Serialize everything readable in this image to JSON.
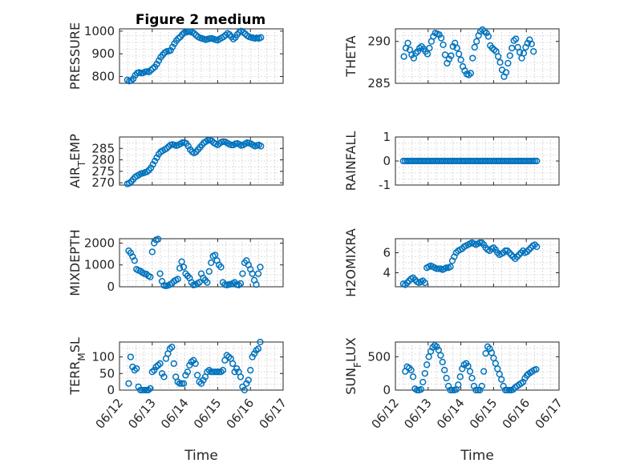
{
  "figure": {
    "title": "Figure 2 medium",
    "marker_color": "#0072BD"
  },
  "chart_data": [
    {
      "type": "scatter",
      "ylabel": "PRESSURE",
      "ylim": [
        770,
        1010
      ],
      "yticks": [
        800,
        900,
        1000
      ],
      "ytick_labels": [
        "800",
        "900",
        "1000"
      ],
      "grid": true,
      "x": [
        0.24,
        0.3,
        0.36,
        0.42,
        0.48,
        0.54,
        0.6,
        0.66,
        0.72,
        0.78,
        0.84,
        0.9,
        0.96,
        1.02,
        1.08,
        1.14,
        1.2,
        1.26,
        1.32,
        1.38,
        1.44,
        1.5,
        1.56,
        1.62,
        1.68,
        1.74,
        1.8,
        1.86,
        1.92,
        1.98,
        2.04,
        2.1,
        2.16,
        2.22,
        2.28,
        2.34,
        2.4,
        2.46,
        2.52,
        2.58,
        2.64,
        2.7,
        2.76,
        2.82,
        2.88,
        2.94,
        3.0,
        3.06,
        3.12,
        3.18,
        3.24,
        3.3,
        3.36,
        3.42,
        3.48,
        3.54,
        3.6,
        3.66,
        3.72,
        3.78,
        3.84,
        3.9,
        3.96,
        4.02,
        4.08,
        4.14,
        4.2,
        4.26,
        4.32
      ],
      "y": [
        785,
        780,
        782,
        790,
        805,
        815,
        818,
        815,
        816,
        820,
        822,
        820,
        828,
        835,
        842,
        855,
        870,
        885,
        895,
        905,
        910,
        912,
        915,
        930,
        945,
        958,
        968,
        975,
        985,
        993,
        995,
        998,
        997,
        995,
        990,
        982,
        975,
        970,
        968,
        965,
        962,
        965,
        967,
        968,
        965,
        962,
        960,
        965,
        970,
        975,
        982,
        990,
        985,
        975,
        965,
        972,
        985,
        995,
        1000,
        995,
        988,
        980,
        975,
        972,
        970,
        968,
        970,
        968,
        972
      ]
    },
    {
      "type": "scatter",
      "ylabel": "THETA",
      "ylim": [
        285,
        291.5
      ],
      "yticks": [
        285,
        290
      ],
      "ytick_labels": [
        "285",
        "290"
      ],
      "grid": true,
      "x": [
        0.26,
        0.32,
        0.38,
        0.44,
        0.5,
        0.56,
        0.62,
        0.68,
        0.74,
        0.8,
        0.86,
        0.92,
        0.98,
        1.04,
        1.1,
        1.16,
        1.22,
        1.28,
        1.34,
        1.4,
        1.46,
        1.52,
        1.58,
        1.64,
        1.7,
        1.76,
        1.82,
        1.88,
        1.94,
        2.0,
        2.06,
        2.12,
        2.18,
        2.24,
        2.3,
        2.36,
        2.42,
        2.48,
        2.54,
        2.6,
        2.66,
        2.72,
        2.78,
        2.84,
        2.9,
        2.96,
        3.02,
        3.08,
        3.14,
        3.2,
        3.26,
        3.32,
        3.38,
        3.44,
        3.5,
        3.56,
        3.62,
        3.68,
        3.74,
        3.8,
        3.86,
        3.92,
        3.98,
        4.04,
        4.1,
        4.16,
        4.22
      ],
      "y": [
        288.2,
        289.2,
        289.8,
        289.0,
        288.4,
        288.0,
        288.6,
        288.8,
        289.2,
        289.4,
        289.1,
        288.8,
        288.5,
        289.2,
        290.0,
        290.6,
        291.0,
        290.9,
        290.8,
        290.4,
        289.6,
        288.4,
        287.4,
        287.9,
        288.3,
        289.4,
        289.8,
        289.2,
        288.5,
        287.8,
        287.0,
        286.5,
        286.1,
        286.0,
        286.2,
        288.0,
        289.3,
        290.0,
        290.7,
        291.2,
        291.4,
        291.2,
        291.0,
        290.6,
        289.5,
        289.2,
        289.0,
        288.8,
        288.2,
        287.5,
        286.6,
        285.8,
        286.3,
        287.4,
        288.3,
        289.2,
        290.1,
        290.3,
        289.3,
        288.7,
        288.0,
        288.6,
        289.3,
        289.8,
        290.2,
        289.7,
        288.8
      ]
    },
    {
      "type": "scatter",
      "ylabel": "AIR_TEMP",
      "ylabel_main": "AIR",
      "ylabel_sub": "T",
      "ylabel_rest": "EMP",
      "ylim": [
        269,
        290
      ],
      "yticks": [
        270,
        275,
        280,
        285
      ],
      "ytick_labels": [
        "270",
        "275",
        "280",
        "285"
      ],
      "grid": true,
      "x": [
        0.24,
        0.3,
        0.36,
        0.42,
        0.48,
        0.54,
        0.6,
        0.66,
        0.72,
        0.78,
        0.84,
        0.9,
        0.96,
        1.02,
        1.08,
        1.14,
        1.2,
        1.26,
        1.32,
        1.38,
        1.44,
        1.5,
        1.56,
        1.62,
        1.68,
        1.74,
        1.8,
        1.86,
        1.92,
        1.98,
        2.04,
        2.1,
        2.16,
        2.22,
        2.28,
        2.34,
        2.4,
        2.46,
        2.52,
        2.58,
        2.64,
        2.7,
        2.76,
        2.82,
        2.88,
        2.94,
        3.0,
        3.06,
        3.12,
        3.18,
        3.24,
        3.3,
        3.36,
        3.42,
        3.48,
        3.54,
        3.6,
        3.66,
        3.72,
        3.78,
        3.84,
        3.9,
        3.96,
        4.02,
        4.08,
        4.14,
        4.2,
        4.26,
        4.32
      ],
      "y": [
        269.5,
        269.8,
        270.5,
        271.5,
        272.5,
        273.0,
        273.5,
        274.0,
        274.2,
        274.5,
        274.8,
        275.5,
        276.5,
        278.0,
        279.5,
        281.0,
        282.5,
        283.5,
        284.0,
        284.5,
        285.0,
        285.8,
        286.5,
        286.7,
        286.5,
        286.2,
        286.5,
        287.0,
        287.5,
        287.6,
        287.2,
        286.0,
        284.5,
        283.5,
        283.0,
        283.5,
        284.5,
        285.5,
        286.5,
        287.5,
        288.0,
        288.5,
        288.6,
        288.3,
        287.5,
        287.0,
        286.5,
        287.2,
        287.8,
        288.0,
        287.8,
        287.3,
        286.8,
        286.5,
        286.5,
        287.0,
        287.2,
        286.8,
        286.3,
        286.5,
        287.0,
        287.5,
        287.3,
        287.0,
        286.5,
        286.0,
        286.3,
        286.5,
        286.0
      ]
    },
    {
      "type": "scatter",
      "ylabel": "RAINFALL",
      "ylim": [
        -1,
        1
      ],
      "yticks": [
        -1,
        0,
        1
      ],
      "ytick_labels": [
        "-1",
        "0",
        "1"
      ],
      "grid": true,
      "x": [
        0.24,
        0.3,
        0.36,
        0.42,
        0.48,
        0.54,
        0.6,
        0.66,
        0.72,
        0.78,
        0.84,
        0.9,
        0.96,
        1.02,
        1.08,
        1.14,
        1.2,
        1.26,
        1.32,
        1.38,
        1.44,
        1.5,
        1.56,
        1.62,
        1.68,
        1.74,
        1.8,
        1.86,
        1.92,
        1.98,
        2.04,
        2.1,
        2.16,
        2.22,
        2.28,
        2.34,
        2.4,
        2.46,
        2.52,
        2.58,
        2.64,
        2.7,
        2.76,
        2.82,
        2.88,
        2.94,
        3.0,
        3.06,
        3.12,
        3.18,
        3.24,
        3.3,
        3.36,
        3.42,
        3.48,
        3.54,
        3.6,
        3.66,
        3.72,
        3.78,
        3.84,
        3.9,
        3.96,
        4.02,
        4.08,
        4.14,
        4.2,
        4.26,
        4.32
      ],
      "y": [
        0,
        0,
        0,
        0,
        0,
        0,
        0,
        0,
        0,
        0,
        0,
        0,
        0,
        0,
        0,
        0,
        0,
        0,
        0,
        0,
        0,
        0,
        0,
        0,
        0,
        0,
        0,
        0,
        0,
        0,
        0,
        0,
        0,
        0,
        0,
        0,
        0,
        0,
        0,
        0,
        0,
        0,
        0,
        0,
        0,
        0,
        0,
        0,
        0,
        0,
        0,
        0,
        0,
        0,
        0,
        0,
        0,
        0,
        0,
        0,
        0,
        0,
        0,
        0,
        0,
        0,
        0,
        0,
        0
      ]
    },
    {
      "type": "scatter",
      "ylabel": "MIXDEPTH",
      "ylim": [
        0,
        2200
      ],
      "yticks": [
        0,
        1000,
        2000
      ],
      "ytick_labels": [
        "0",
        "1000",
        "2000"
      ],
      "grid": true,
      "x": [
        0.28,
        0.34,
        0.4,
        0.46,
        0.52,
        0.58,
        0.64,
        0.7,
        0.76,
        0.82,
        0.88,
        0.94,
        1.0,
        1.06,
        1.12,
        1.18,
        1.24,
        1.3,
        1.36,
        1.42,
        1.48,
        1.54,
        1.6,
        1.66,
        1.72,
        1.78,
        1.84,
        1.9,
        1.96,
        2.02,
        2.08,
        2.14,
        2.2,
        2.26,
        2.32,
        2.38,
        2.44,
        2.5,
        2.56,
        2.62,
        2.68,
        2.74,
        2.8,
        2.86,
        2.92,
        2.98,
        3.04,
        3.1,
        3.16,
        3.22,
        3.28,
        3.34,
        3.4,
        3.46,
        3.52,
        3.58,
        3.64,
        3.7,
        3.76,
        3.82,
        3.88,
        3.94,
        4.0,
        4.06,
        4.12,
        4.18,
        4.24,
        4.3
      ],
      "y": [
        1650,
        1550,
        1380,
        1200,
        800,
        750,
        720,
        650,
        600,
        580,
        500,
        450,
        1600,
        2000,
        2150,
        2180,
        600,
        250,
        60,
        40,
        60,
        100,
        150,
        250,
        300,
        350,
        850,
        1150,
        900,
        600,
        500,
        400,
        200,
        80,
        100,
        150,
        200,
        600,
        400,
        300,
        200,
        700,
        1100,
        1400,
        1450,
        1200,
        1000,
        900,
        200,
        100,
        80,
        100,
        120,
        150,
        200,
        100,
        80,
        150,
        600,
        1100,
        1200,
        1000,
        800,
        600,
        300,
        100,
        600,
        900
      ]
    },
    {
      "type": "scatter",
      "ylabel": "H2OMIXRA",
      "ylim": [
        2.6,
        7.4
      ],
      "yticks": [
        4,
        6
      ],
      "ytick_labels": [
        "4",
        "6"
      ],
      "grid": true,
      "x": [
        0.24,
        0.3,
        0.36,
        0.42,
        0.48,
        0.54,
        0.6,
        0.66,
        0.72,
        0.78,
        0.84,
        0.9,
        0.96,
        1.02,
        1.08,
        1.14,
        1.2,
        1.26,
        1.32,
        1.38,
        1.44,
        1.5,
        1.56,
        1.62,
        1.68,
        1.74,
        1.8,
        1.86,
        1.92,
        1.98,
        2.04,
        2.1,
        2.16,
        2.22,
        2.28,
        2.34,
        2.4,
        2.46,
        2.52,
        2.58,
        2.64,
        2.7,
        2.76,
        2.82,
        2.88,
        2.94,
        3.0,
        3.06,
        3.12,
        3.18,
        3.24,
        3.3,
        3.36,
        3.42,
        3.48,
        3.54,
        3.6,
        3.66,
        3.72,
        3.78,
        3.84,
        3.9,
        3.96,
        4.02,
        4.08,
        4.14,
        4.2,
        4.26,
        4.32
      ],
      "y": [
        2.9,
        2.8,
        3.0,
        3.2,
        3.4,
        3.5,
        3.3,
        3.1,
        3.0,
        3.1,
        3.2,
        3.0,
        4.5,
        4.6,
        4.7,
        4.6,
        4.5,
        4.4,
        4.4,
        4.4,
        4.3,
        4.4,
        4.5,
        4.5,
        4.6,
        5.2,
        5.6,
        6.0,
        6.2,
        6.3,
        6.4,
        6.6,
        6.7,
        6.8,
        6.9,
        7.0,
        6.9,
        6.8,
        6.9,
        7.0,
        7.0,
        6.8,
        6.5,
        6.3,
        6.2,
        6.4,
        6.5,
        6.3,
        6.0,
        5.8,
        5.9,
        6.0,
        6.2,
        6.2,
        6.0,
        5.8,
        5.6,
        5.4,
        5.6,
        5.8,
        6.0,
        6.2,
        6.0,
        6.1,
        6.3,
        6.5,
        6.7,
        6.8,
        6.6
      ]
    },
    {
      "type": "scatter",
      "ylabel": "TERR_MSL",
      "ylabel_main": "TERR",
      "ylabel_sub": "M",
      "ylabel_rest": "SL",
      "ylim": [
        0,
        145
      ],
      "yticks": [
        0,
        50,
        100
      ],
      "ytick_labels": [
        "0",
        "50",
        "100"
      ],
      "grid": true,
      "x": [
        0.28,
        0.34,
        0.4,
        0.46,
        0.52,
        0.58,
        0.64,
        0.7,
        0.76,
        0.82,
        0.88,
        0.94,
        1.0,
        1.06,
        1.12,
        1.18,
        1.24,
        1.3,
        1.36,
        1.42,
        1.48,
        1.54,
        1.6,
        1.66,
        1.72,
        1.78,
        1.84,
        1.9,
        1.96,
        2.02,
        2.08,
        2.14,
        2.2,
        2.26,
        2.32,
        2.38,
        2.44,
        2.5,
        2.56,
        2.62,
        2.68,
        2.74,
        2.8,
        2.86,
        2.92,
        2.98,
        3.04,
        3.1,
        3.16,
        3.22,
        3.28,
        3.34,
        3.4,
        3.46,
        3.52,
        3.58,
        3.64,
        3.7,
        3.76,
        3.82,
        3.88,
        3.94,
        4.0,
        4.06,
        4.12,
        4.18,
        4.24,
        4.3
      ],
      "y": [
        20,
        100,
        70,
        60,
        65,
        10,
        0,
        0,
        0,
        0,
        0,
        5,
        55,
        60,
        70,
        75,
        80,
        50,
        40,
        95,
        110,
        125,
        130,
        80,
        40,
        25,
        20,
        20,
        20,
        45,
        55,
        75,
        85,
        90,
        80,
        45,
        25,
        20,
        30,
        40,
        55,
        60,
        55,
        55,
        55,
        55,
        55,
        55,
        60,
        90,
        105,
        100,
        95,
        80,
        55,
        65,
        55,
        40,
        10,
        0,
        20,
        30,
        60,
        100,
        110,
        120,
        125,
        145
      ]
    },
    {
      "type": "scatter",
      "ylabel": "SUN_FLUX",
      "ylabel_main": "SUN",
      "ylabel_sub": "F",
      "ylabel_rest": "LUX",
      "ylim": [
        0,
        720
      ],
      "yticks": [
        0,
        500
      ],
      "ytick_labels": [
        "0",
        "500"
      ],
      "grid": true,
      "x": [
        0.3,
        0.36,
        0.42,
        0.48,
        0.54,
        0.6,
        0.66,
        0.72,
        0.78,
        0.84,
        0.9,
        0.96,
        1.02,
        1.08,
        1.14,
        1.2,
        1.26,
        1.32,
        1.38,
        1.44,
        1.5,
        1.56,
        1.62,
        1.68,
        1.74,
        1.8,
        1.86,
        1.92,
        1.98,
        2.04,
        2.1,
        2.16,
        2.22,
        2.28,
        2.34,
        2.4,
        2.46,
        2.52,
        2.58,
        2.64,
        2.7,
        2.76,
        2.82,
        2.88,
        2.94,
        3.0,
        3.06,
        3.12,
        3.18,
        3.24,
        3.3,
        3.36,
        3.42,
        3.48,
        3.54,
        3.6,
        3.66,
        3.72,
        3.78,
        3.84,
        3.9,
        3.96,
        4.02,
        4.06,
        4.12,
        4.18,
        4.24,
        4.3
      ],
      "y": [
        280,
        350,
        330,
        300,
        200,
        20,
        0,
        0,
        10,
        120,
        250,
        380,
        500,
        580,
        640,
        670,
        650,
        600,
        520,
        420,
        300,
        180,
        60,
        0,
        0,
        0,
        10,
        80,
        200,
        320,
        380,
        400,
        360,
        280,
        180,
        60,
        0,
        0,
        0,
        60,
        280,
        550,
        650,
        620,
        560,
        480,
        400,
        320,
        240,
        160,
        60,
        0,
        0,
        0,
        0,
        10,
        40,
        60,
        80,
        100,
        120,
        180,
        220,
        240,
        260,
        280,
        300,
        310
      ]
    }
  ],
  "x_axis": {
    "ticks": [
      0,
      1,
      2,
      3,
      4,
      5
    ],
    "tick_labels": [
      "06/12",
      "06/13",
      "06/14",
      "06/15",
      "06/16",
      "06/17"
    ],
    "label": "Time",
    "xlim": [
      0,
      5
    ]
  }
}
